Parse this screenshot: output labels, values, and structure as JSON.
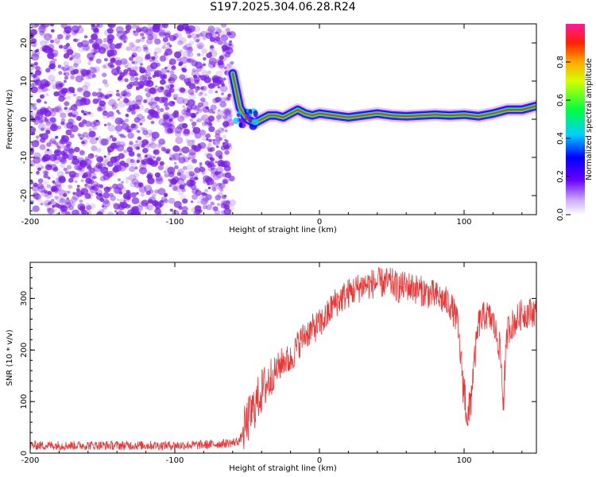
{
  "title": "S197.2025.304.06.28.R24",
  "colors": {
    "snr_line": "#ee3333",
    "spectrum_noise": "#7a1fe6",
    "frame": "#000000"
  },
  "chart_data": [
    {
      "type": "heatmap",
      "name": "spectrogram",
      "xlabel": "Height of straight line (km)",
      "ylabel": "Frequency (Hz)",
      "xlim": [
        -200,
        150
      ],
      "ylim": [
        -25,
        25
      ],
      "xticks": [
        "-200",
        "-100",
        "0",
        "100"
      ],
      "xtick_values": [
        -200,
        -100,
        0,
        100
      ],
      "yticks": [
        "-20",
        "-10",
        "0",
        "10",
        "20"
      ],
      "ytick_values": [
        -20,
        -10,
        0,
        10,
        20
      ],
      "noise_region_x": [
        -200,
        -60
      ],
      "signal_track": {
        "x": [
          -60,
          -55,
          -50,
          -45,
          -40,
          -35,
          -30,
          -25,
          -20,
          -15,
          -10,
          -5,
          0,
          10,
          20,
          30,
          40,
          50,
          60,
          70,
          80,
          90,
          100,
          110,
          120,
          130,
          140,
          150
        ],
        "frequency": [
          12,
          3,
          0,
          -1,
          0,
          1,
          1,
          0.5,
          1.5,
          2.5,
          1.5,
          1,
          1.5,
          1,
          0.5,
          1,
          1.5,
          1,
          0.8,
          1,
          1.2,
          1,
          1.2,
          0.8,
          1.5,
          2.5,
          2.5,
          3.5
        ]
      },
      "colorbar": {
        "label": "Normalized spectral amplitude",
        "range": [
          0,
          1
        ],
        "ticks": [
          "0.0",
          "0.2",
          "0.4",
          "0.6",
          "0.8"
        ],
        "tick_values": [
          0.0,
          0.2,
          0.4,
          0.6,
          0.8
        ]
      }
    },
    {
      "type": "line",
      "name": "snr",
      "xlabel": "Height of straight line (km)",
      "ylabel": "SNR (10 * v/v)",
      "xlim": [
        -200,
        150
      ],
      "ylim": [
        0,
        370
      ],
      "xticks": [
        "-200",
        "-100",
        "0",
        "100"
      ],
      "xtick_values": [
        -200,
        -100,
        0,
        100
      ],
      "yticks": [
        "0",
        "100",
        "200",
        "300"
      ],
      "ytick_values": [
        0,
        100,
        200,
        300
      ],
      "series": [
        {
          "name": "SNR",
          "x": [
            -200,
            -180,
            -160,
            -140,
            -120,
            -100,
            -80,
            -60,
            -55,
            -50,
            -45,
            -40,
            -35,
            -30,
            -25,
            -20,
            -15,
            -10,
            -5,
            0,
            5,
            10,
            20,
            30,
            40,
            50,
            55,
            60,
            70,
            80,
            90,
            95,
            100,
            103,
            106,
            110,
            115,
            120,
            125,
            127,
            130,
            140,
            150
          ],
          "values": [
            15,
            15,
            15,
            15,
            15,
            15,
            16,
            20,
            25,
            60,
            90,
            120,
            140,
            160,
            180,
            180,
            210,
            230,
            240,
            250,
            265,
            290,
            310,
            325,
            330,
            330,
            320,
            325,
            315,
            305,
            290,
            260,
            120,
            60,
            150,
            250,
            270,
            255,
            200,
            100,
            240,
            270,
            275
          ]
        }
      ]
    }
  ]
}
